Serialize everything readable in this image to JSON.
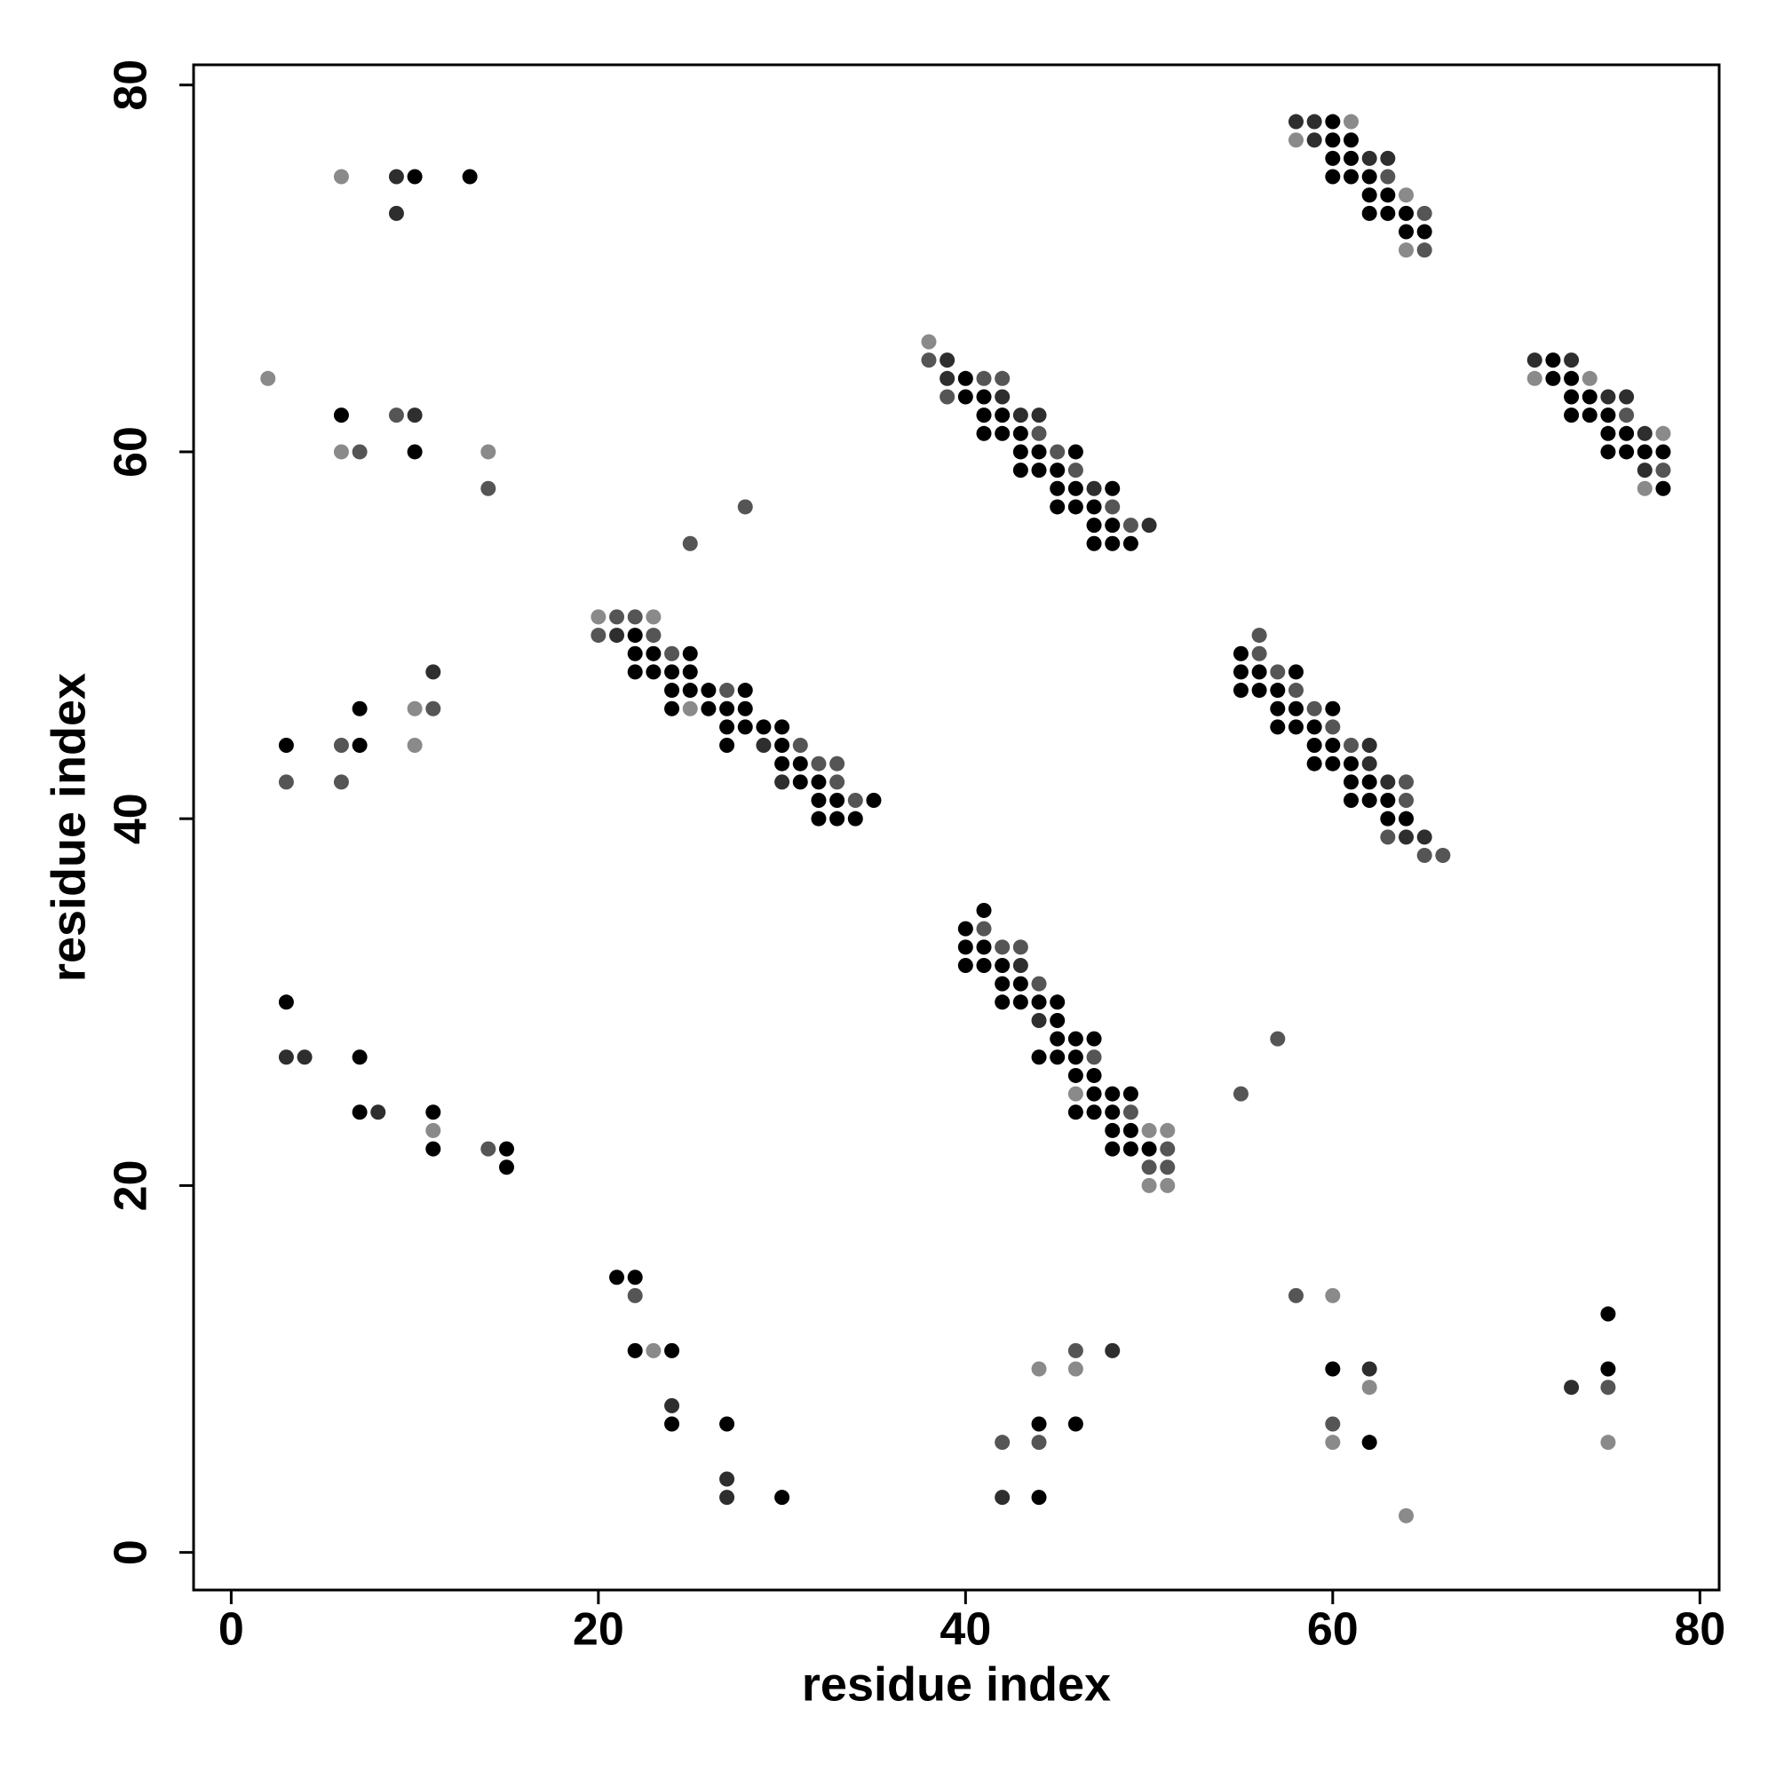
{
  "chart_data": {
    "type": "scatter",
    "xlabel": "residue index",
    "ylabel": "residue index",
    "xlim": [
      -2.05,
      81.05
    ],
    "ylim": [
      -2.05,
      81.1
    ],
    "xticks": [
      0,
      20,
      40,
      60,
      80
    ],
    "yticks": [
      0,
      20,
      40,
      60,
      80
    ],
    "series": [
      {
        "color": "#000000",
        "x": [
          10,
          13,
          6,
          10,
          7,
          3,
          7,
          3,
          7,
          7,
          11,
          11,
          15,
          15,
          21,
          22,
          22,
          24,
          24,
          27,
          30,
          44,
          46,
          44,
          60,
          62,
          75,
          75,
          22,
          22,
          23,
          25,
          22,
          23,
          24,
          25,
          24,
          25,
          26,
          28,
          24,
          26,
          27,
          28,
          27,
          28,
          29,
          30,
          27,
          30,
          30,
          31,
          31,
          32,
          32,
          33,
          35,
          32,
          33,
          34,
          40,
          40,
          41,
          41,
          42,
          41,
          42,
          43,
          43,
          44,
          46,
          43,
          44,
          45,
          45,
          46,
          48,
          45,
          46,
          47,
          47,
          48,
          47,
          48,
          49,
          60,
          60,
          61,
          60,
          61,
          60,
          61,
          62,
          62,
          63,
          62,
          63,
          64,
          64,
          65,
          72,
          72,
          73,
          73,
          74,
          73,
          74,
          75,
          75,
          76,
          75,
          76,
          77,
          78,
          78,
          55,
          55,
          56,
          58,
          55,
          56,
          57,
          57,
          58,
          60,
          57,
          58,
          59,
          59,
          60,
          59,
          60,
          61,
          61,
          62,
          61,
          62,
          63,
          63,
          64,
          41,
          40,
          40,
          41,
          40,
          41,
          42,
          42,
          43,
          42,
          43,
          44,
          45,
          45,
          45,
          46,
          47,
          44,
          45,
          46,
          46,
          47,
          47,
          48,
          49,
          46,
          47,
          48,
          48,
          49,
          48,
          49,
          50
        ],
        "values": [
          75,
          75,
          62,
          60,
          46,
          44,
          44,
          30,
          27,
          24,
          24,
          22,
          22,
          21,
          15,
          15,
          11,
          11,
          7,
          7,
          3,
          7,
          7,
          3,
          10,
          6,
          13,
          10,
          50,
          49,
          49,
          49,
          48,
          48,
          48,
          48,
          47,
          47,
          47,
          47,
          46,
          46,
          46,
          46,
          45,
          45,
          45,
          45,
          44,
          44,
          43,
          43,
          42,
          42,
          41,
          41,
          41,
          40,
          40,
          40,
          64,
          63,
          63,
          62,
          62,
          61,
          61,
          61,
          60,
          60,
          60,
          59,
          59,
          59,
          58,
          58,
          58,
          57,
          57,
          57,
          56,
          56,
          55,
          55,
          55,
          78,
          77,
          77,
          76,
          76,
          75,
          75,
          75,
          74,
          74,
          73,
          73,
          73,
          72,
          72,
          65,
          64,
          64,
          63,
          63,
          62,
          62,
          62,
          61,
          61,
          60,
          60,
          60,
          60,
          58,
          49,
          48,
          48,
          48,
          47,
          47,
          47,
          46,
          46,
          46,
          45,
          45,
          45,
          44,
          44,
          43,
          43,
          43,
          42,
          42,
          41,
          41,
          41,
          40,
          40,
          35,
          34,
          33,
          33,
          32,
          32,
          32,
          31,
          31,
          30,
          30,
          30,
          30,
          29,
          28,
          28,
          28,
          27,
          27,
          27,
          26,
          26,
          25,
          25,
          25,
          24,
          24,
          24,
          23,
          23,
          22,
          22,
          22
        ]
      },
      {
        "color": "#2e2e2e",
        "x": [
          9,
          9,
          10,
          11,
          3,
          4,
          8,
          24,
          27,
          27,
          48,
          42,
          62,
          73,
          21,
          29,
          30,
          39,
          39,
          42,
          43,
          44,
          47,
          50,
          58,
          59,
          59,
          62,
          63,
          71,
          73,
          75,
          76,
          77,
          77,
          62,
          62,
          63,
          64,
          65,
          43,
          44
        ],
        "values": [
          75,
          73,
          62,
          48,
          27,
          27,
          24,
          8,
          4,
          3,
          11,
          3,
          10,
          9,
          50,
          44,
          42,
          65,
          64,
          63,
          62,
          62,
          58,
          56,
          78,
          78,
          77,
          76,
          76,
          65,
          65,
          63,
          63,
          61,
          59,
          44,
          43,
          42,
          39,
          39,
          32,
          29
        ]
      },
      {
        "color": "#555555",
        "x": [
          9,
          7,
          14,
          28,
          25,
          11,
          6,
          3,
          6,
          14,
          22,
          42,
          44,
          46,
          58,
          60,
          75,
          55,
          57,
          21,
          22,
          20,
          23,
          24,
          27,
          31,
          32,
          33,
          33,
          34,
          38,
          41,
          42,
          39,
          44,
          45,
          46,
          48,
          49,
          63,
          65,
          65,
          76,
          78,
          56,
          56,
          57,
          58,
          59,
          60,
          61,
          64,
          64,
          63,
          65,
          66,
          41,
          42,
          43,
          44,
          47,
          49,
          51,
          50,
          51
        ],
        "values": [
          62,
          60,
          58,
          57,
          55,
          46,
          44,
          42,
          42,
          22,
          14,
          6,
          6,
          11,
          14,
          7,
          9,
          25,
          28,
          51,
          51,
          50,
          50,
          49,
          47,
          44,
          43,
          43,
          42,
          41,
          65,
          64,
          64,
          63,
          61,
          60,
          59,
          57,
          56,
          75,
          73,
          71,
          62,
          59,
          50,
          49,
          48,
          47,
          46,
          45,
          44,
          42,
          41,
          39,
          38,
          38,
          34,
          33,
          33,
          31,
          27,
          24,
          22,
          21,
          21
        ]
      },
      {
        "color": "#8a8a8a",
        "x": [
          6,
          2,
          6,
          14,
          10,
          10,
          11,
          23,
          44,
          46,
          60,
          62,
          60,
          64,
          75,
          20,
          23,
          25,
          38,
          61,
          58,
          64,
          64,
          71,
          74,
          78,
          77,
          46,
          50,
          51,
          50,
          51
        ],
        "values": [
          75,
          64,
          60,
          60,
          46,
          44,
          23,
          11,
          10,
          10,
          14,
          9,
          6,
          2,
          6,
          51,
          51,
          46,
          66,
          78,
          77,
          74,
          71,
          64,
          64,
          61,
          58,
          25,
          23,
          23,
          20,
          20
        ]
      }
    ]
  }
}
